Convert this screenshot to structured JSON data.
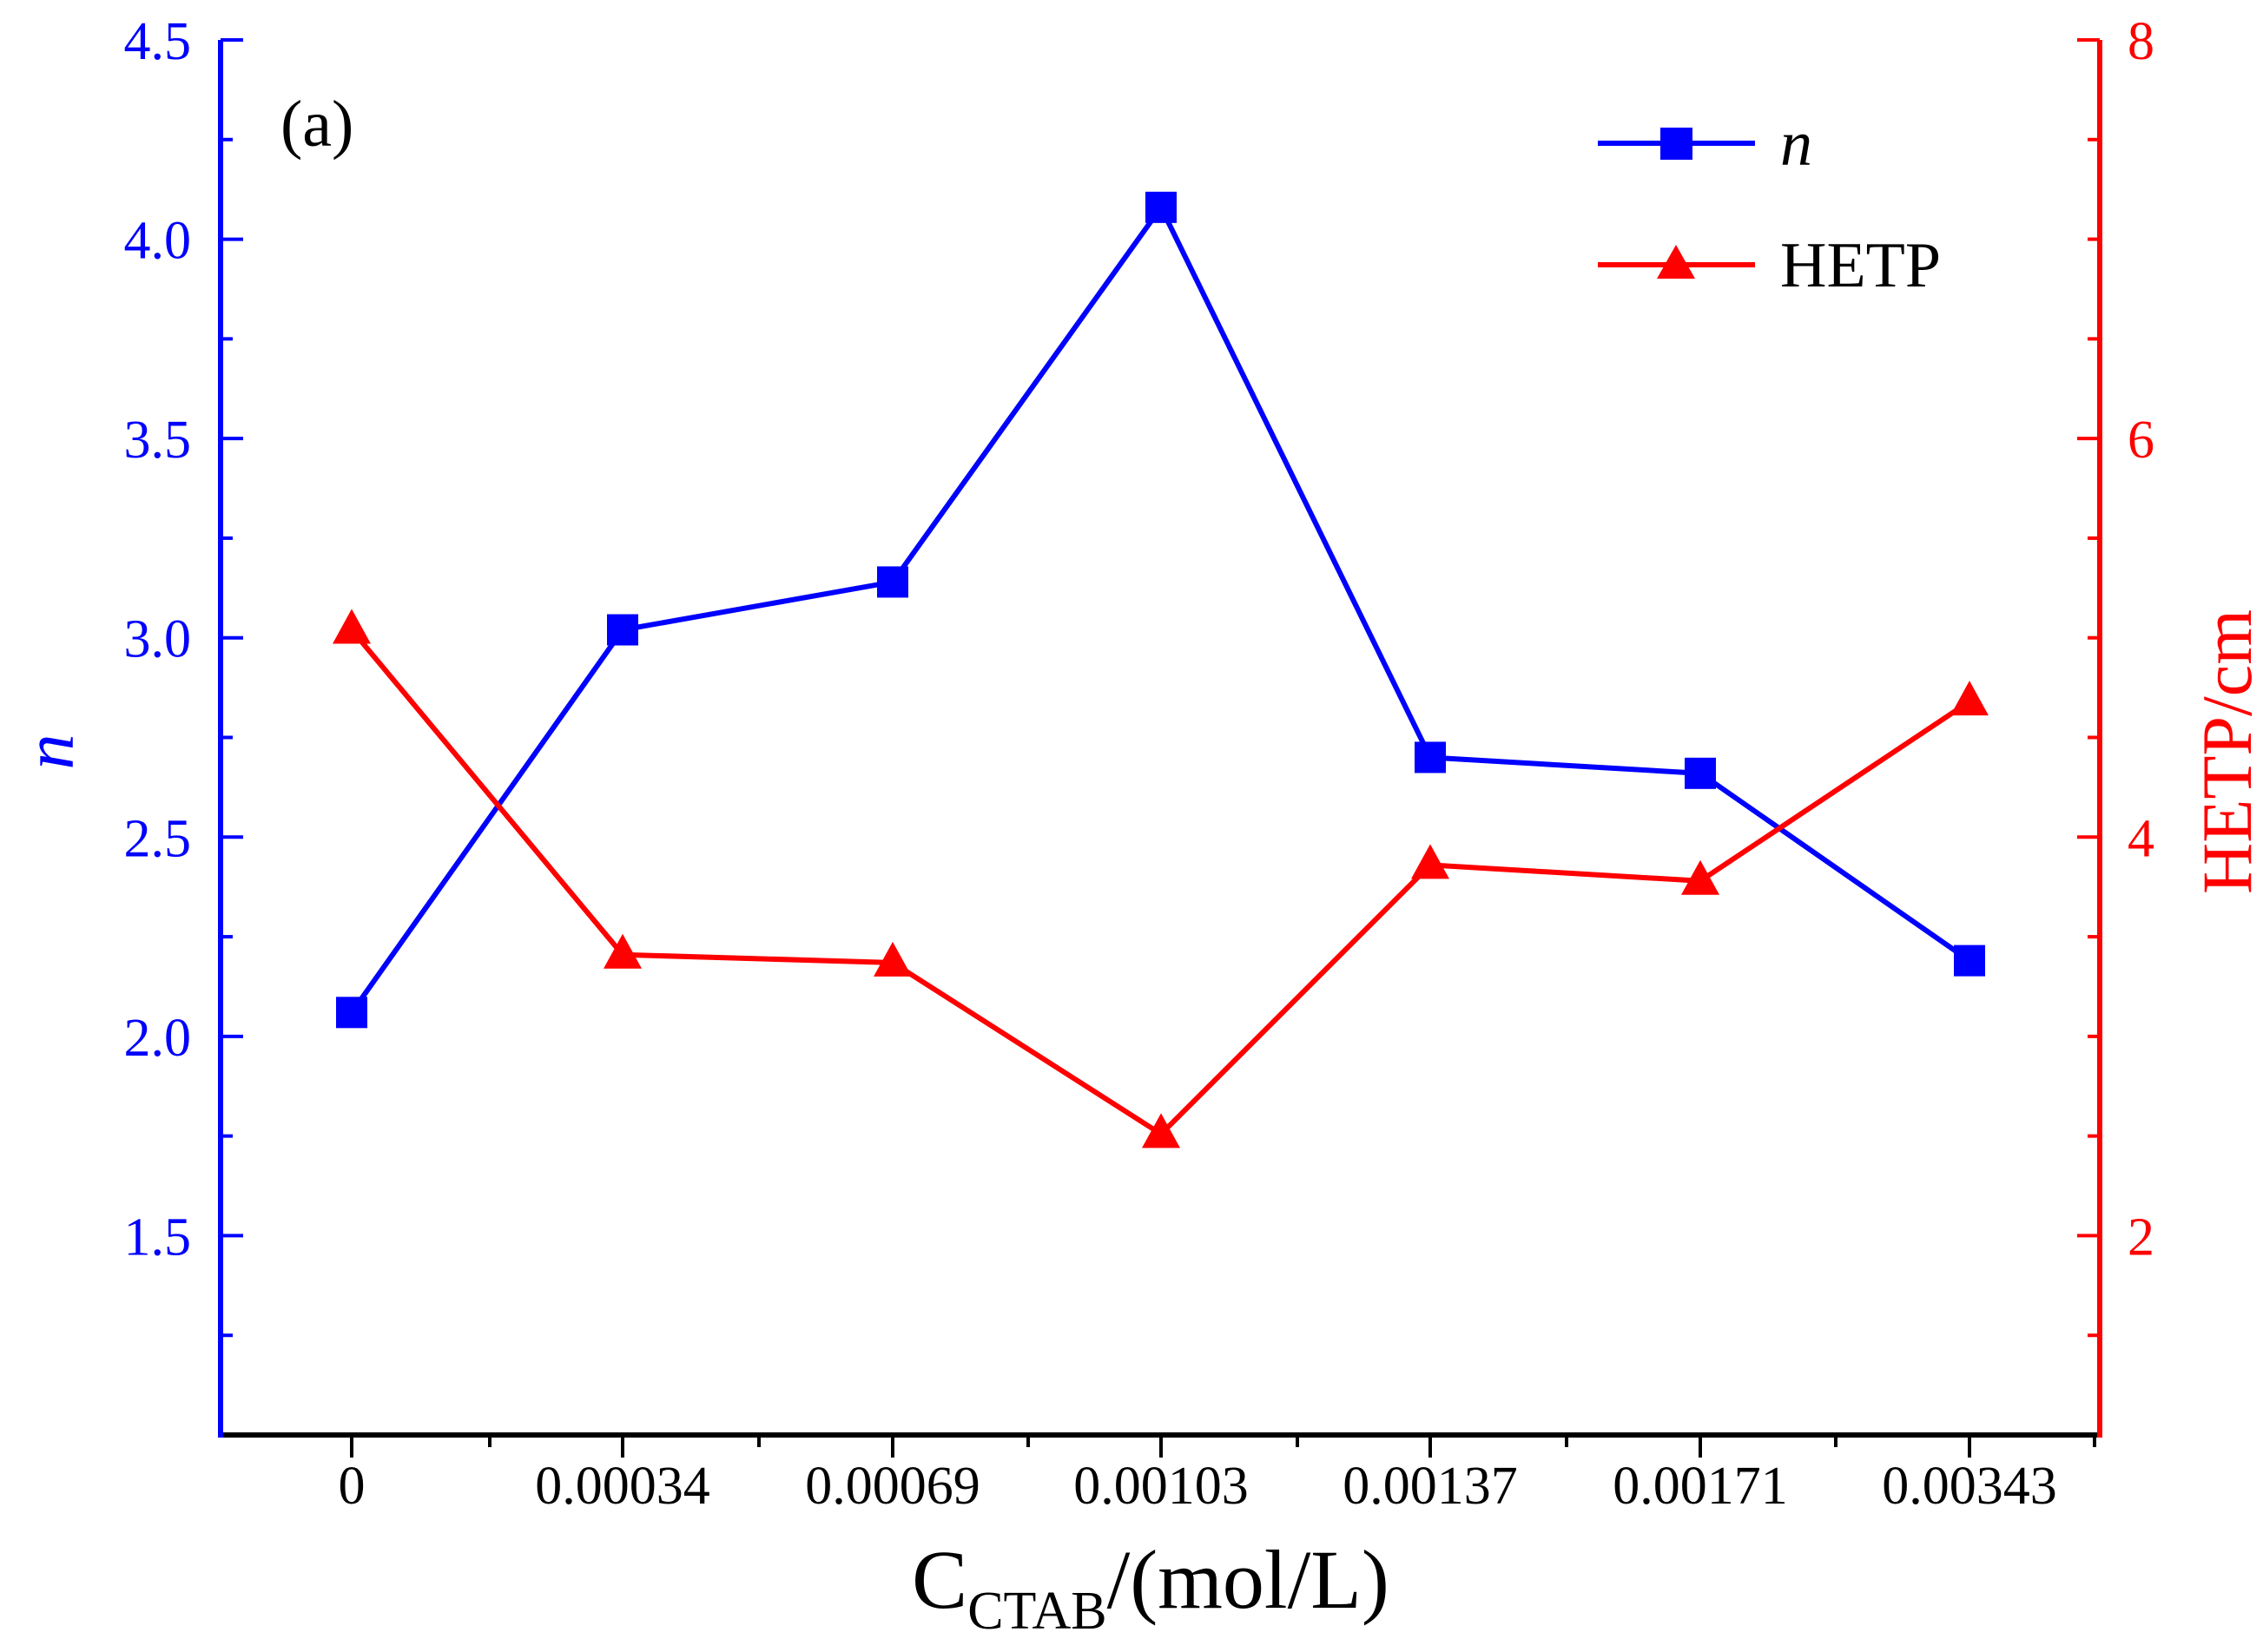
{
  "colors": {
    "n": "#0000ff",
    "hetp": "#ff0000",
    "axis": "#000000"
  },
  "chart_data": {
    "type": "line",
    "panel_label": "(a)",
    "categories": [
      "0",
      "0.00034",
      "0.00069",
      "0.00103",
      "0.00137",
      "0.00171",
      "0.00343"
    ],
    "xlabel": {
      "main": "C",
      "sub": "CTAB",
      "rest": "/(mol/L)"
    },
    "ylabel_left": "n",
    "ylabel_right": "HETP/cm",
    "y_left": {
      "lim": [
        1.0,
        4.5
      ],
      "ticks": [
        "1.5",
        "2.0",
        "2.5",
        "3.0",
        "3.5",
        "4.0",
        "4.5"
      ]
    },
    "y_right": {
      "lim": [
        1.0,
        8.0
      ],
      "ticks": [
        "2",
        "4",
        "6",
        "8"
      ]
    },
    "legend_position": "top-right",
    "series": [
      {
        "name": "n",
        "axis": "left",
        "marker": "square",
        "values": [
          2.06,
          3.02,
          3.14,
          4.08,
          2.7,
          2.66,
          2.19
        ]
      },
      {
        "name": "HETP",
        "axis": "right",
        "marker": "triangle",
        "values": [
          5.04,
          3.41,
          3.37,
          2.51,
          3.86,
          3.78,
          4.68
        ]
      }
    ],
    "grid": false
  }
}
